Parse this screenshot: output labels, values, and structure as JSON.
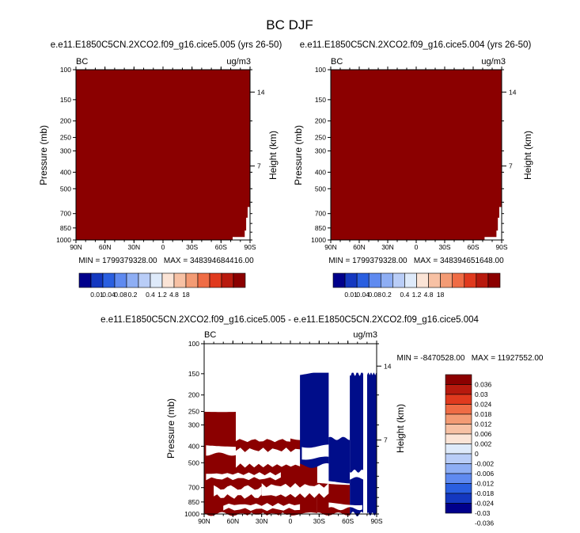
{
  "figure": {
    "title": "BC DJF"
  },
  "colors": {
    "dark_red": "#8b0000",
    "dark_blue": "#000d8a",
    "levels_palette": [
      "#00008b",
      "#1438c0",
      "#2a5fe0",
      "#5f8af0",
      "#8eaef4",
      "#b9cdf7",
      "#deeafa",
      "#fbe4d6",
      "#f7c1a4",
      "#f39b74",
      "#ef6c45",
      "#e03a1e",
      "#b81a0e",
      "#8b0000"
    ],
    "diff_palette": [
      "#8b0000",
      "#b71a0e",
      "#e03a1e",
      "#ef6c45",
      "#f39b74",
      "#f7c1a4",
      "#fbe4d6",
      "#deeafa",
      "#b9cdf7",
      "#8eaef4",
      "#5f8af0",
      "#2a5fe0",
      "#1438c0",
      "#00008b"
    ]
  },
  "chart_data": [
    {
      "type": "heatmap",
      "id": "left",
      "title": "e.e11.E1850C5CN.2XCO2.f09_g16.cice5.005 (yrs 26-50)",
      "left_label": "BC",
      "units": "ug/m3",
      "ylabel": "Pressure (mb)",
      "y2label": "Height (km)",
      "x_ticks": [
        "90N",
        "60N",
        "30N",
        "0",
        "30S",
        "60S",
        "90S"
      ],
      "y_ticks": [
        "100",
        "150",
        "200",
        "250",
        "300",
        "400",
        "500",
        "700",
        "850",
        "1000"
      ],
      "y2_ticks": [
        "14",
        "7"
      ],
      "xlim": [
        90,
        -90
      ],
      "ylim": [
        1000,
        100
      ],
      "stats": "MIN = 1799379328.00   MAX = 348394684416.00",
      "colorbar_labels": [
        "0.01",
        "0.04",
        "0.08",
        "0.2",
        "0.4",
        "1.2",
        "4.8",
        "18"
      ]
    },
    {
      "type": "heatmap",
      "id": "right",
      "title": "e.e11.E1850C5CN.2XCO2.f09_g16.cice5.004 (yrs 26-50)",
      "left_label": "BC",
      "units": "ug/m3",
      "ylabel": "Pressure (mb)",
      "y2label": "Height (km)",
      "x_ticks": [
        "90N",
        "60N",
        "30N",
        "0",
        "30S",
        "60S",
        "90S"
      ],
      "y_ticks": [
        "100",
        "150",
        "200",
        "250",
        "300",
        "400",
        "500",
        "700",
        "850",
        "1000"
      ],
      "y2_ticks": [
        "14",
        "7"
      ],
      "xlim": [
        90,
        -90
      ],
      "ylim": [
        1000,
        100
      ],
      "stats": "MIN = 1799379328.00   MAX = 348394651648.00",
      "colorbar_labels": [
        "0.01",
        "0.04",
        "0.08",
        "0.2",
        "0.4",
        "1.2",
        "4.8",
        "18"
      ]
    },
    {
      "type": "heatmap",
      "id": "diff",
      "title": "e.e11.E1850C5CN.2XCO2.f09_g16.cice5.005 - e.e11.E1850C5CN.2XCO2.f09_g16.cice5.004",
      "left_label": "BC",
      "units": "ug/m3",
      "ylabel": "Pressure (mb)",
      "y2label": "Height (km)",
      "x_ticks": [
        "90N",
        "60N",
        "30N",
        "0",
        "30S",
        "60S",
        "90S"
      ],
      "y_ticks": [
        "100",
        "150",
        "200",
        "250",
        "300",
        "400",
        "500",
        "700",
        "850",
        "1000"
      ],
      "y2_ticks": [
        "14",
        "7"
      ],
      "xlim": [
        90,
        -90
      ],
      "ylim": [
        1000,
        100
      ],
      "stats": "MIN = -8470528.00   MAX = 11927552.00",
      "colorbar_labels": [
        "0.036",
        "0.03",
        "0.024",
        "0.018",
        "0.012",
        "0.006",
        "0.002",
        "0",
        "-0.002",
        "-0.006",
        "-0.012",
        "-0.018",
        "-0.024",
        "-0.03",
        "-0.036"
      ]
    }
  ]
}
